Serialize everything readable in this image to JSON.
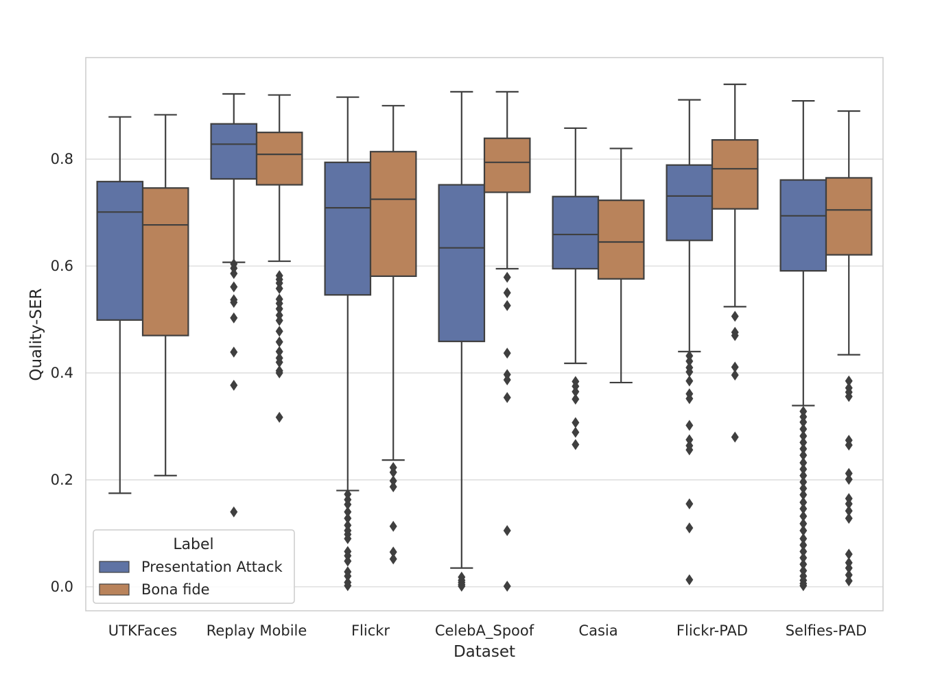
{
  "chart_data": {
    "type": "box",
    "xlabel": "Dataset",
    "ylabel": "Quality-SER",
    "ylim": [
      -0.045,
      0.99
    ],
    "yticks": [
      0.0,
      0.2,
      0.4,
      0.6,
      0.8
    ],
    "ytick_labels": [
      "0.0",
      "0.2",
      "0.4",
      "0.6",
      "0.8"
    ],
    "grid": true,
    "legend": {
      "title": "Label",
      "position": "lower-left",
      "entries": [
        "Presentation Attack",
        "Bona fide"
      ]
    },
    "categories": [
      "UTKFaces",
      "Replay Mobile",
      "Flickr",
      "CelebA_Spoof",
      "Casia",
      "Flickr-PAD",
      "Selfies-PAD"
    ],
    "series": [
      {
        "name": "Presentation Attack",
        "color": "#5f73a4",
        "boxes": [
          {
            "whisker_low": 0.175,
            "q1": 0.499,
            "median": 0.701,
            "q3": 0.758,
            "whisker_high": 0.879,
            "outliers": []
          },
          {
            "whisker_low": 0.607,
            "q1": 0.763,
            "median": 0.828,
            "q3": 0.866,
            "whisker_high": 0.922,
            "outliers": [
              0.604,
              0.596,
              0.586,
              0.561,
              0.537,
              0.532,
              0.503,
              0.439,
              0.377,
              0.14
            ]
          },
          {
            "whisker_low": 0.18,
            "q1": 0.546,
            "median": 0.709,
            "q3": 0.794,
            "whisker_high": 0.916,
            "outliers": [
              0.173,
              0.163,
              0.154,
              0.14,
              0.128,
              0.115,
              0.105,
              0.098,
              0.09,
              0.066,
              0.058,
              0.048,
              0.028,
              0.02,
              0.008,
              0.002
            ]
          },
          {
            "whisker_low": 0.035,
            "q1": 0.459,
            "median": 0.634,
            "q3": 0.752,
            "whisker_high": 0.926,
            "outliers": [
              0.018,
              0.012,
              0.008,
              0.004,
              0.001
            ]
          },
          {
            "whisker_low": 0.418,
            "q1": 0.595,
            "median": 0.659,
            "q3": 0.73,
            "whisker_high": 0.858,
            "outliers": [
              0.384,
              0.375,
              0.365,
              0.351,
              0.307,
              0.289,
              0.266
            ]
          },
          {
            "whisker_low": 0.44,
            "q1": 0.648,
            "median": 0.731,
            "q3": 0.789,
            "whisker_high": 0.911,
            "outliers": [
              0.432,
              0.422,
              0.41,
              0.402,
              0.385,
              0.361,
              0.352,
              0.302,
              0.275,
              0.264,
              0.256,
              0.155,
              0.11,
              0.013
            ]
          },
          {
            "whisker_low": 0.339,
            "q1": 0.591,
            "median": 0.694,
            "q3": 0.761,
            "whisker_high": 0.909,
            "outliers": [
              0.328,
              0.318,
              0.308,
              0.295,
              0.282,
              0.27,
              0.258,
              0.246,
              0.232,
              0.22,
              0.208,
              0.196,
              0.184,
              0.172,
              0.158,
              0.146,
              0.132,
              0.118,
              0.105,
              0.09,
              0.078,
              0.066,
              0.054,
              0.042,
              0.03,
              0.02,
              0.012,
              0.006,
              0.002
            ]
          }
        ]
      },
      {
        "name": "Bona fide",
        "color": "#b9835b",
        "boxes": [
          {
            "whisker_low": 0.208,
            "q1": 0.47,
            "median": 0.677,
            "q3": 0.746,
            "whisker_high": 0.883,
            "outliers": []
          },
          {
            "whisker_low": 0.609,
            "q1": 0.752,
            "median": 0.809,
            "q3": 0.85,
            "whisker_high": 0.92,
            "outliers": [
              0.582,
              0.575,
              0.568,
              0.558,
              0.538,
              0.53,
              0.52,
              0.508,
              0.498,
              0.478,
              0.458,
              0.44,
              0.428,
              0.42,
              0.404,
              0.4,
              0.317
            ]
          },
          {
            "whisker_low": 0.237,
            "q1": 0.581,
            "median": 0.725,
            "q3": 0.814,
            "whisker_high": 0.9,
            "outliers": [
              0.223,
              0.214,
              0.198,
              0.187,
              0.113,
              0.065,
              0.052
            ]
          },
          {
            "whisker_low": 0.595,
            "q1": 0.738,
            "median": 0.794,
            "q3": 0.839,
            "whisker_high": 0.926,
            "outliers": [
              0.579,
              0.55,
              0.526,
              0.437,
              0.397,
              0.387,
              0.354,
              0.105,
              0.001
            ]
          },
          {
            "whisker_low": 0.382,
            "q1": 0.576,
            "median": 0.645,
            "q3": 0.723,
            "whisker_high": 0.82,
            "outliers": []
          },
          {
            "whisker_low": 0.524,
            "q1": 0.707,
            "median": 0.782,
            "q3": 0.836,
            "whisker_high": 0.94,
            "outliers": [
              0.506,
              0.476,
              0.47,
              0.411,
              0.396,
              0.28
            ]
          },
          {
            "whisker_low": 0.434,
            "q1": 0.621,
            "median": 0.705,
            "q3": 0.765,
            "whisker_high": 0.89,
            "outliers": [
              0.385,
              0.372,
              0.364,
              0.356,
              0.274,
              0.265,
              0.212,
              0.201,
              0.165,
              0.155,
              0.142,
              0.128,
              0.061,
              0.045,
              0.035,
              0.022,
              0.011
            ]
          }
        ]
      }
    ]
  }
}
